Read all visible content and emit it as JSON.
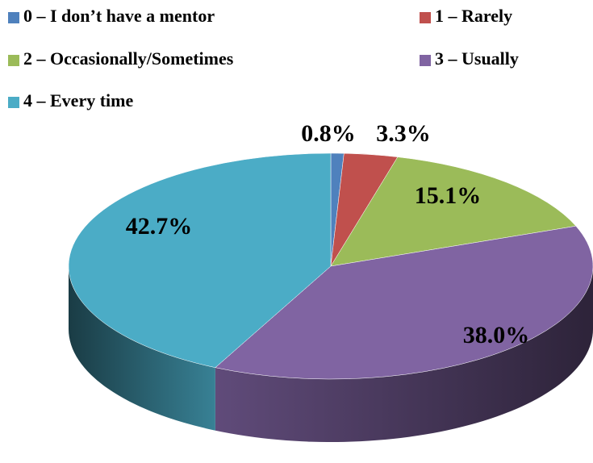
{
  "chart_data": {
    "type": "pie",
    "categories": [
      "0 – I don’t have a mentor",
      "1 – Rarely",
      "2 – Occasionally/Sometimes",
      "3 – Usually",
      "4 – Every time"
    ],
    "values": [
      0.8,
      3.3,
      15.1,
      38.0,
      42.7
    ],
    "value_labels": [
      "0.8%",
      "3.3%",
      "15.1%",
      "38.0%",
      "42.7%"
    ],
    "colors": [
      "#4f81bd",
      "#c0504d",
      "#9bbb59",
      "#8064a2",
      "#4bacc6"
    ],
    "legend": "top"
  }
}
